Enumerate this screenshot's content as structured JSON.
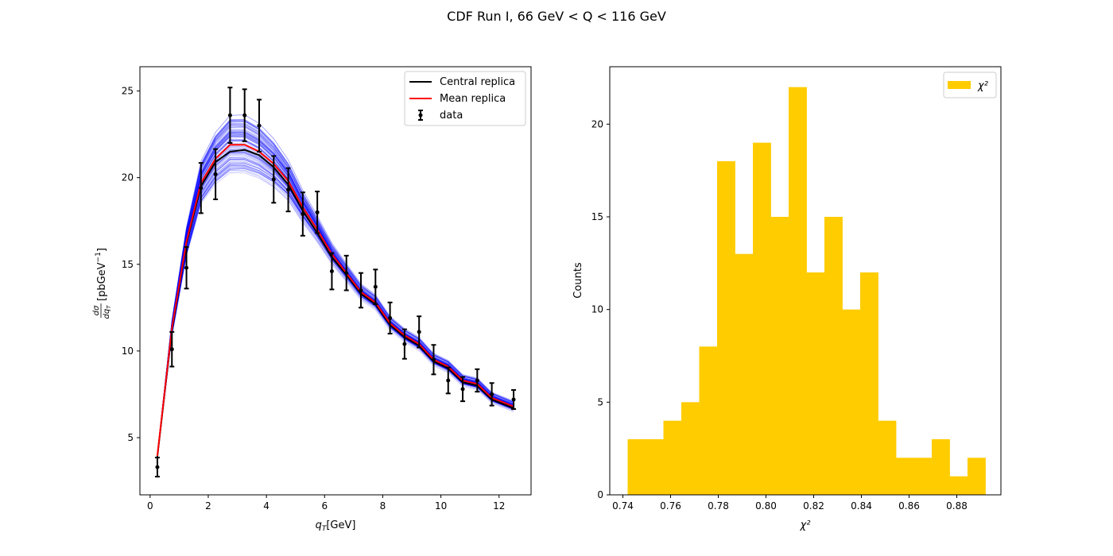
{
  "figure": {
    "title": "CDF Run I, 66 GeV < Q < 116 GeV"
  },
  "chart_data": [
    {
      "type": "line",
      "xlabel_main": "q",
      "xlabel_sub": "T",
      "xlabel_unit": "[GeV]",
      "ylabel": "dσ/dq_T [pbGeV⁻¹]",
      "ylabel_frac_num": "dσ",
      "ylabel_frac_den_main": "dq",
      "ylabel_frac_den_sub": "T",
      "ylabel_unit": "[pbGeV",
      "ylabel_unit_sup": "−1",
      "ylabel_unit_close": "]",
      "xlim": [
        -0.35,
        13.1
      ],
      "ylim": [
        1.7,
        26.4
      ],
      "xticks": [
        0,
        2,
        4,
        6,
        8,
        10,
        12
      ],
      "yticks": [
        5,
        10,
        15,
        20,
        25
      ],
      "legend_position": "top-right",
      "legend": [
        "Central replica",
        "Mean replica",
        "data"
      ],
      "replica_band_color": "#0000ff",
      "x": [
        0.25,
        0.75,
        1.25,
        1.75,
        2.25,
        2.75,
        3.25,
        3.75,
        4.25,
        4.75,
        5.25,
        5.75,
        6.25,
        6.75,
        7.25,
        7.75,
        8.25,
        8.75,
        9.25,
        9.75,
        10.25,
        10.75,
        11.25,
        11.75,
        12.5
      ],
      "series": [
        {
          "name": "Central replica",
          "color": "#000000",
          "values": [
            3.9,
            11.2,
            16.2,
            19.5,
            20.9,
            21.5,
            21.6,
            21.3,
            20.6,
            19.6,
            18.1,
            16.8,
            15.4,
            14.4,
            13.3,
            12.7,
            11.5,
            10.8,
            10.3,
            9.4,
            9.0,
            8.2,
            8.0,
            7.2,
            6.7
          ]
        },
        {
          "name": "Mean replica",
          "color": "#ff0000",
          "values": [
            3.95,
            11.3,
            16.3,
            19.7,
            21.1,
            21.9,
            21.9,
            21.5,
            20.8,
            19.8,
            18.3,
            17.0,
            15.6,
            14.5,
            13.4,
            12.8,
            11.6,
            10.9,
            10.4,
            9.5,
            9.1,
            8.3,
            8.1,
            7.3,
            6.8
          ]
        },
        {
          "name": "data",
          "color": "#000000",
          "values": [
            3.3,
            10.1,
            14.8,
            19.4,
            20.2,
            23.6,
            23.6,
            23.0,
            19.9,
            19.3,
            17.9,
            18.0,
            14.6,
            14.5,
            13.5,
            13.7,
            11.9,
            10.4,
            11.1,
            9.5,
            8.3,
            7.8,
            8.3,
            7.5,
            7.2
          ],
          "errors": [
            0.55,
            1.0,
            1.2,
            1.45,
            1.45,
            1.6,
            1.5,
            1.5,
            1.35,
            1.25,
            1.25,
            1.2,
            1.05,
            1.0,
            1.0,
            1.0,
            0.9,
            0.85,
            0.9,
            0.85,
            0.75,
            0.7,
            0.65,
            0.65,
            0.55
          ]
        }
      ]
    },
    {
      "type": "bar",
      "subtype": "histogram",
      "xlabel": "χ²",
      "ylabel": "Counts",
      "xlim": [
        0.7345,
        0.8985
      ],
      "ylim": [
        0,
        23.1
      ],
      "xticks": [
        0.74,
        0.76,
        0.78,
        0.8,
        0.82,
        0.84,
        0.86,
        0.88
      ],
      "xticklabels": [
        "0.74",
        "0.76",
        "0.78",
        "0.80",
        "0.82",
        "0.84",
        "0.86",
        "0.88"
      ],
      "yticks": [
        0,
        5,
        10,
        15,
        20
      ],
      "legend_position": "top-right",
      "legend": [
        "χ²"
      ],
      "color": "#ffcc00",
      "bin_edges": [
        0.742,
        0.7495,
        0.757,
        0.7645,
        0.772,
        0.7795,
        0.787,
        0.7945,
        0.802,
        0.8095,
        0.817,
        0.8245,
        0.832,
        0.8395,
        0.847,
        0.8545,
        0.862,
        0.8695,
        0.877,
        0.8845,
        0.892
      ],
      "counts": [
        3,
        3,
        4,
        5,
        8,
        18,
        13,
        19,
        15,
        22,
        12,
        15,
        10,
        12,
        4,
        2,
        2,
        3,
        1,
        2
      ]
    }
  ]
}
